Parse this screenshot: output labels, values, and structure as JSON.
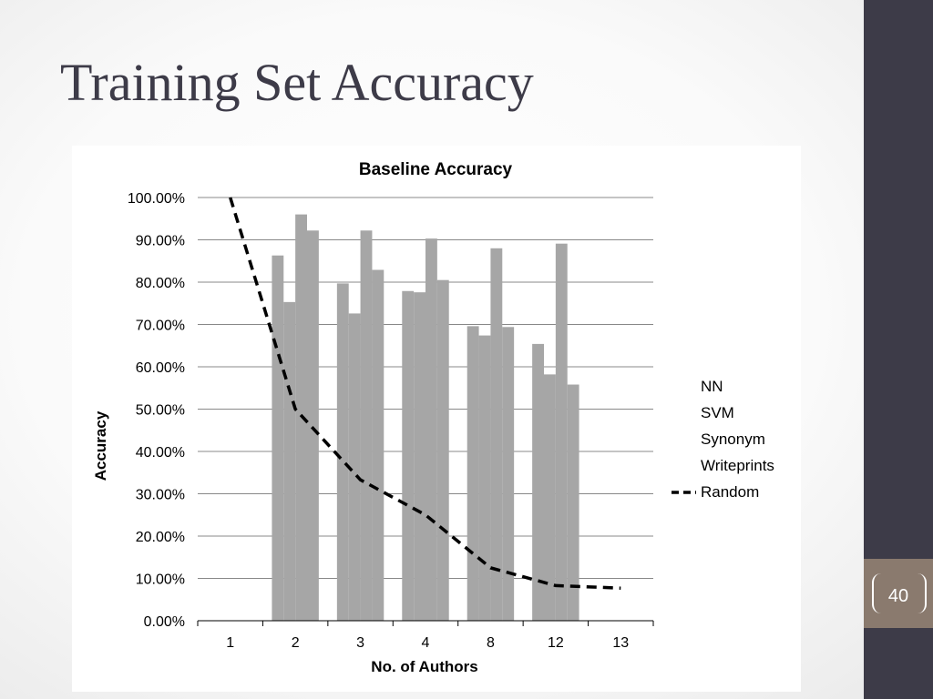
{
  "slide": {
    "title": "Training Set Accuracy",
    "page_number": "40"
  },
  "colors": {
    "sidebar": "#3d3b48",
    "page_tab": "#8a7a6e",
    "bars": "#a6a6a6",
    "random_line": "#000000",
    "gridline": "#888888"
  },
  "chart_data": {
    "type": "bar",
    "title": "Baseline Accuracy",
    "xlabel": "No. of Authors",
    "ylabel": "Accuracy",
    "categories": [
      "1",
      "2",
      "3",
      "4",
      "8",
      "12",
      "13"
    ],
    "ylim": [
      0,
      100
    ],
    "ytick_values": [
      0,
      10,
      20,
      30,
      40,
      50,
      60,
      70,
      80,
      90,
      100
    ],
    "ytick_labels": [
      "0.00%",
      "10.00%",
      "20.00%",
      "30.00%",
      "40.00%",
      "50.00%",
      "60.00%",
      "70.00%",
      "80.00%",
      "90.00%",
      "100.00%"
    ],
    "grid": true,
    "legend_position": "right",
    "series": [
      {
        "name": "NN",
        "type": "bar",
        "values": [
          null,
          86.3,
          79.7,
          77.9,
          69.6,
          65.4,
          null
        ]
      },
      {
        "name": "SVM",
        "type": "bar",
        "values": [
          null,
          75.3,
          72.6,
          77.6,
          67.4,
          58.2,
          null
        ]
      },
      {
        "name": "Synonym",
        "type": "bar",
        "values": [
          null,
          96.0,
          92.2,
          90.3,
          88.0,
          89.1,
          null
        ]
      },
      {
        "name": "Writeprints",
        "type": "bar",
        "values": [
          null,
          92.2,
          82.9,
          80.5,
          69.4,
          55.8,
          null
        ]
      },
      {
        "name": "Random",
        "type": "line",
        "style": "dashed",
        "values": [
          100.0,
          50.0,
          33.3,
          25.0,
          12.5,
          8.3,
          7.7
        ]
      }
    ]
  }
}
